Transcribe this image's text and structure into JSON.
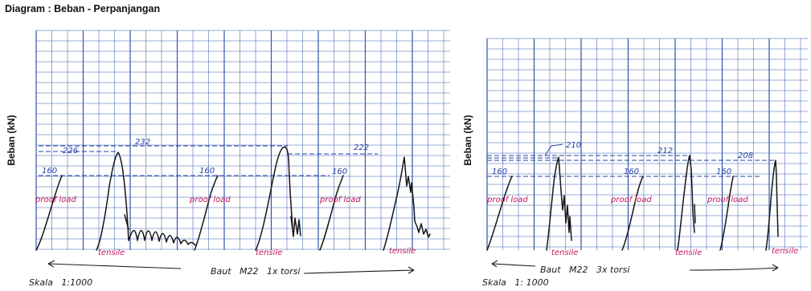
{
  "title": "Diagram : Beban - Perpanjangan",
  "chart_data": [
    {
      "type": "line",
      "ylabel": "Beban (kN)",
      "grid": true,
      "dashed_levels": [
        226,
        232,
        222,
        160
      ],
      "curves": [
        {
          "label": "proof load",
          "peak": 160
        },
        {
          "label": "tensile",
          "peak": 226
        },
        {
          "label": "proof load",
          "peak": 160
        },
        {
          "label": "tensile",
          "peak": 232
        },
        {
          "label": "proof load",
          "peak": 160
        },
        {
          "label": "tensile",
          "peak": 222
        }
      ],
      "annotations": {
        "v226": "226",
        "v232": "232",
        "v222": "222",
        "p1": "160",
        "p2": "160",
        "p3": "160",
        "pl1": "proof load",
        "pl2": "proof load",
        "pl3": "proof load",
        "t1": "tensile",
        "t2": "tensile",
        "t3": "tensile",
        "caption": "Baut   M22   1x torsi",
        "scale": "Skala   1:1000"
      }
    },
    {
      "type": "line",
      "ylabel": "Beban (kN)",
      "grid": true,
      "dashed_levels": [
        210,
        212,
        208,
        160
      ],
      "curves": [
        {
          "label": "proof load",
          "peak": 160
        },
        {
          "label": "tensile",
          "peak": 210
        },
        {
          "label": "proof load",
          "peak": 160
        },
        {
          "label": "tensile",
          "peak": 212
        },
        {
          "label": "proof load",
          "peak": 160
        },
        {
          "label": "tensile",
          "peak": 208
        }
      ],
      "annotations": {
        "v210": "210",
        "v212": "212",
        "v208": "208",
        "p1": "160",
        "p2": "160",
        "p3": "160",
        "pl1": "proof load",
        "pl2": "proof load",
        "pl3": "proof load",
        "t1": "tensile",
        "t2": "tensile",
        "t3": "tensile",
        "caption": "Baut   M22   3x torsi",
        "scale": "Skala   1: 1000"
      }
    }
  ]
}
